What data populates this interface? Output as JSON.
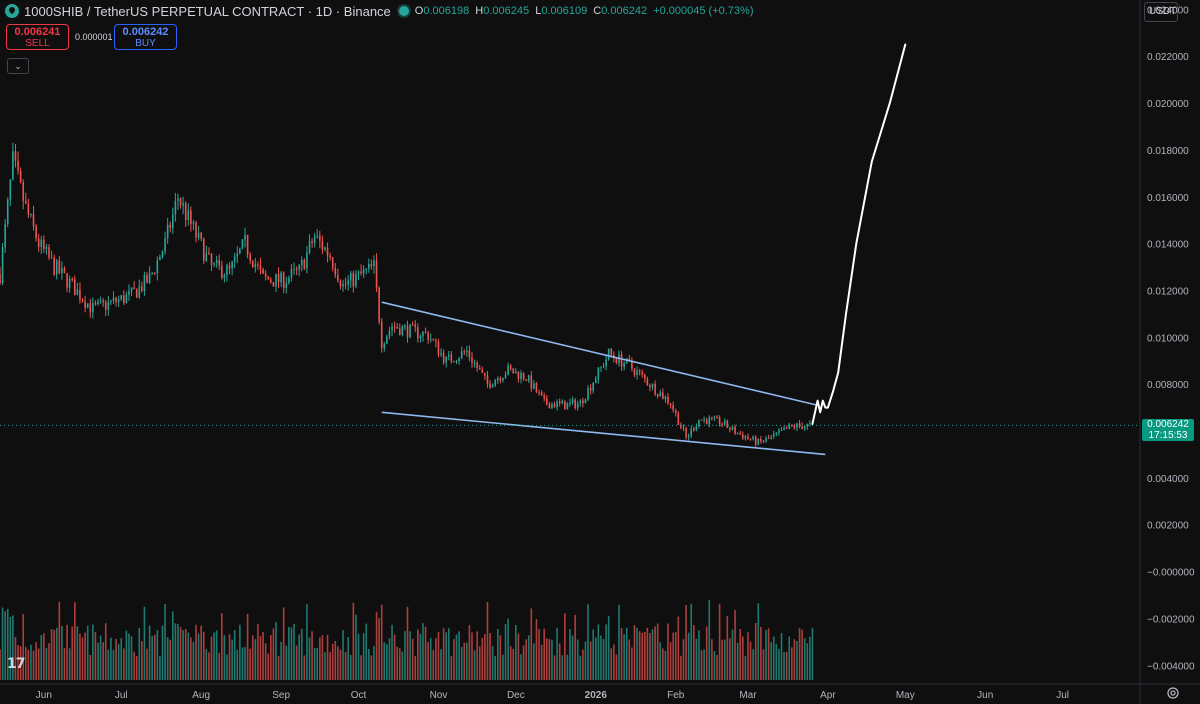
{
  "header": {
    "symbol_title": "1000SHIB / TetherUS PERPETUAL CONTRACT · 1D · Binance",
    "ohlc": [
      {
        "k": "O",
        "v": "0.006198"
      },
      {
        "k": "H",
        "v": "0.006245"
      },
      {
        "k": "L",
        "v": "0.006109"
      },
      {
        "k": "C",
        "v": "0.006242"
      }
    ],
    "change": "+0.000045 (+0.73%)"
  },
  "trade": {
    "sell_price": "0.006241",
    "sell_label": "SELL",
    "spread": "0.000001",
    "buy_price": "0.006242",
    "buy_label": "BUY"
  },
  "currency_selector": "USDT",
  "last_price_tag": {
    "price": "0.006242",
    "countdown": "17:15:53"
  },
  "colors": {
    "up": "#26a69a",
    "down": "#ef5350",
    "trendline": "#90b8f0",
    "projection": "#ffffff",
    "background": "#0f0f0f"
  },
  "chart_data": {
    "type": "candlestick",
    "y_axis_labels": [
      "0.024000",
      "0.022000",
      "0.020000",
      "0.018000",
      "0.016000",
      "0.014000",
      "0.012000",
      "0.010000",
      "0.008000",
      "0.006000",
      "0.004000",
      "0.002000",
      "−0.000000",
      "−0.002000",
      "−0.004000"
    ],
    "x_axis_labels": [
      "Jun",
      "Jul",
      "Aug",
      "Sep",
      "Oct",
      "Nov",
      "Dec",
      "2026",
      "Feb",
      "Mar",
      "Apr",
      "May",
      "Jun",
      "Jul"
    ],
    "ylim": [
      -0.0048,
      0.0244
    ],
    "x_range": [
      "2025-05-15",
      "2026-07-31"
    ],
    "last_price": 0.006242,
    "price_path": [
      [
        "2025-05-15",
        0.0127
      ],
      [
        "2025-05-20",
        0.0175
      ],
      [
        "2025-05-25",
        0.0155
      ],
      [
        "2025-05-30",
        0.014
      ],
      [
        "2025-06-05",
        0.013
      ],
      [
        "2025-06-12",
        0.0122
      ],
      [
        "2025-06-20",
        0.0112
      ],
      [
        "2025-06-28",
        0.0115
      ],
      [
        "2025-07-05",
        0.0118
      ],
      [
        "2025-07-12",
        0.0125
      ],
      [
        "2025-07-18",
        0.014
      ],
      [
        "2025-07-23",
        0.016
      ],
      [
        "2025-07-28",
        0.0148
      ],
      [
        "2025-08-05",
        0.013
      ],
      [
        "2025-08-12",
        0.0128
      ],
      [
        "2025-08-18",
        0.014
      ],
      [
        "2025-08-25",
        0.0125
      ],
      [
        "2025-09-01",
        0.0124
      ],
      [
        "2025-09-08",
        0.0128
      ],
      [
        "2025-09-14",
        0.0143
      ],
      [
        "2025-09-20",
        0.0135
      ],
      [
        "2025-09-25",
        0.0122
      ],
      [
        "2025-10-01",
        0.0126
      ],
      [
        "2025-10-07",
        0.013
      ],
      [
        "2025-10-10",
        0.0098
      ],
      [
        "2025-10-14",
        0.0105
      ],
      [
        "2025-10-20",
        0.0103
      ],
      [
        "2025-10-28",
        0.0101
      ],
      [
        "2025-11-04",
        0.009
      ],
      [
        "2025-11-12",
        0.0094
      ],
      [
        "2025-11-20",
        0.008
      ],
      [
        "2025-11-28",
        0.0086
      ],
      [
        "2025-12-05",
        0.0083
      ],
      [
        "2025-12-12",
        0.0072
      ],
      [
        "2025-12-20",
        0.0071
      ],
      [
        "2025-12-26",
        0.0072
      ],
      [
        "2026-01-02",
        0.0085
      ],
      [
        "2026-01-06",
        0.0093
      ],
      [
        "2026-01-14",
        0.0088
      ],
      [
        "2026-01-22",
        0.008
      ],
      [
        "2026-01-30",
        0.0072
      ],
      [
        "2026-02-05",
        0.0057
      ],
      [
        "2026-02-10",
        0.0065
      ],
      [
        "2026-02-18",
        0.0064
      ],
      [
        "2026-02-25",
        0.0059
      ],
      [
        "2026-03-05",
        0.0055
      ],
      [
        "2026-03-10",
        0.0057
      ],
      [
        "2026-03-18",
        0.0062
      ],
      [
        "2026-03-26",
        0.00624
      ]
    ],
    "pattern": {
      "type": "falling wedge",
      "upper_line": [
        [
          "2025-10-10",
          0.0115
        ],
        [
          "2026-03-28",
          0.0071
        ]
      ],
      "lower_line": [
        [
          "2025-10-10",
          0.0068
        ],
        [
          "2026-03-31",
          0.005
        ]
      ]
    },
    "projection_path": [
      [
        "2026-03-26",
        0.0063
      ],
      [
        "2026-03-28",
        0.0073
      ],
      [
        "2026-03-29",
        0.0068
      ],
      [
        "2026-03-30",
        0.0073
      ],
      [
        "2026-03-31",
        0.007
      ],
      [
        "2026-04-01",
        0.007
      ],
      [
        "2026-04-03",
        0.0077
      ],
      [
        "2026-04-05",
        0.0085
      ],
      [
        "2026-04-08",
        0.011
      ],
      [
        "2026-04-12",
        0.014
      ],
      [
        "2026-04-18",
        0.0175
      ],
      [
        "2026-04-25",
        0.02
      ],
      [
        "2026-05-01",
        0.0225
      ]
    ]
  }
}
